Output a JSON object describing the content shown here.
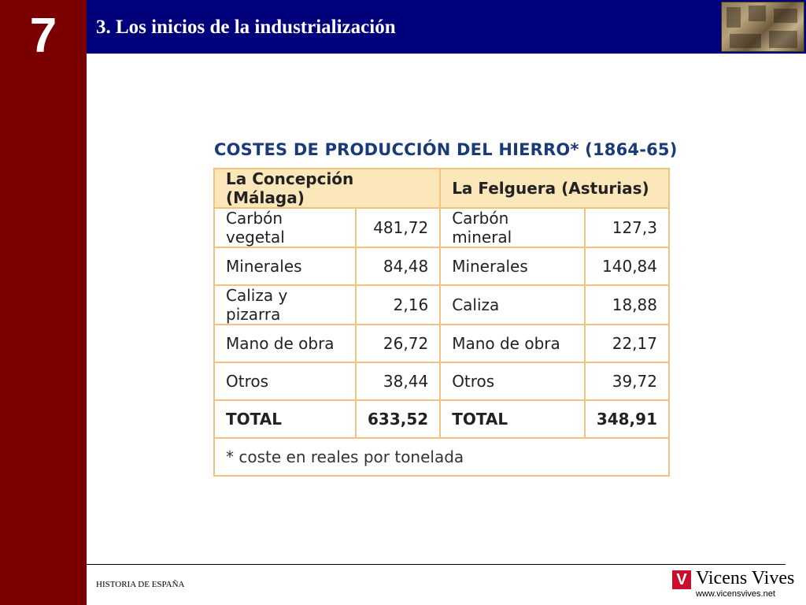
{
  "slide": {
    "chapter_number": "7",
    "title": "3. Los inicios de la industrialización",
    "footer_text": "HISTORIA DE ESPAÑA",
    "brand": "Vicens Vives",
    "brand_url": "www.vicensvives.net"
  },
  "table": {
    "title": "COSTES DE PRODUCCIÓN DEL HIERRO* (1864-65)",
    "headers": [
      "La Concepción (Málaga)",
      "La Felguera (Asturias)"
    ],
    "rows": [
      {
        "left_label": "Carbón vegetal",
        "left_value": "481,72",
        "right_label": "Carbón mineral",
        "right_value": "127,3"
      },
      {
        "left_label": "Minerales",
        "left_value": "84,48",
        "right_label": "Minerales",
        "right_value": "140,84"
      },
      {
        "left_label": "Caliza y pizarra",
        "left_value": "2,16",
        "right_label": "Caliza",
        "right_value": "18,88"
      },
      {
        "left_label": "Mano de obra",
        "left_value": "26,72",
        "right_label": "Mano de obra",
        "right_value": "22,17"
      },
      {
        "left_label": "Otros",
        "left_value": "38,44",
        "right_label": "Otros",
        "right_value": "39,72"
      }
    ],
    "total": {
      "left_label": "TOTAL",
      "left_value": "633,52",
      "right_label": "TOTAL",
      "right_value": "348,91"
    },
    "note": "* coste en reales por tonelada"
  },
  "colors": {
    "left_bar": "#7a0000",
    "header_bar": "#00007a",
    "table_border": "#f3c27d",
    "table_header_bg": "#fce7ba",
    "table_title": "#1a3a7a",
    "brand_red": "#c8102e"
  },
  "icons": {
    "header_image": "historical-painting-thumbnail",
    "brand_logo": "vicens-vives-logo"
  }
}
